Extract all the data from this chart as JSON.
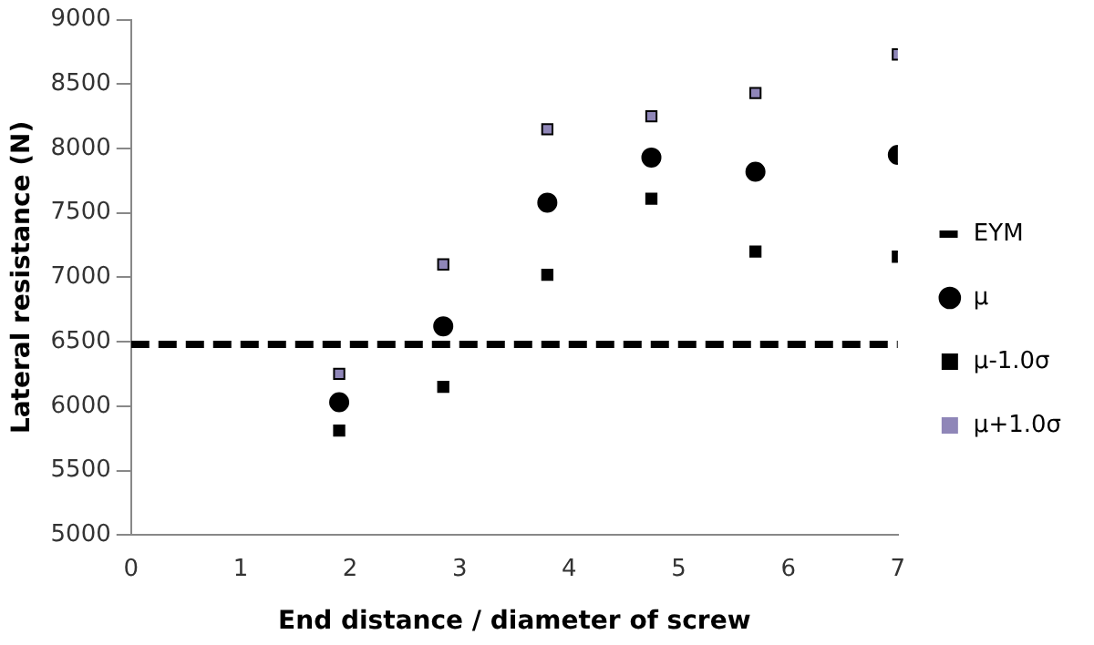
{
  "chart_data": {
    "type": "scatter",
    "xlabel": "End distance / diameter of screw",
    "ylabel": "Lateral resistance (N)",
    "xlim": [
      0,
      7
    ],
    "xticks": [
      0,
      1,
      2,
      3,
      4,
      5,
      6,
      7
    ],
    "ylim": [
      5000,
      9000
    ],
    "yticks": [
      5000,
      5500,
      6000,
      6500,
      7000,
      7500,
      8000,
      8500,
      9000
    ],
    "grid": false,
    "legend": "right",
    "series": [
      {
        "name": "EYM",
        "type": "line",
        "line_style": "dashed",
        "marker": "none",
        "color": "#000000",
        "x": [
          0,
          7
        ],
        "values": [
          6480,
          6480
        ]
      },
      {
        "name": "μ",
        "marker": "circle",
        "color": "#000000",
        "x": [
          1.9,
          2.85,
          3.8,
          4.75,
          5.7,
          7
        ],
        "values": [
          6030,
          6620,
          7580,
          7930,
          7820,
          7950
        ]
      },
      {
        "name": "μ-1.0σ",
        "marker": "square",
        "color": "#000000",
        "x": [
          1.9,
          2.85,
          3.8,
          4.75,
          5.7,
          7
        ],
        "values": [
          5810,
          6150,
          7020,
          7610,
          7200,
          7160
        ]
      },
      {
        "name": "μ+1.0σ",
        "marker": "square",
        "color": "#8f86b8",
        "x": [
          1.9,
          2.85,
          3.8,
          4.75,
          5.7,
          7
        ],
        "values": [
          6250,
          7100,
          8150,
          8250,
          8430,
          8730
        ]
      }
    ]
  }
}
